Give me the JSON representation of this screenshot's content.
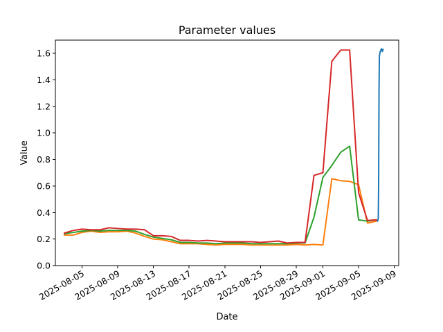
{
  "chart_data": {
    "type": "line",
    "title": "Parameter values",
    "xlabel": "Date",
    "ylabel": "Value",
    "x_type": "date",
    "xlim": [
      "2025-08-02",
      "2025-09-09T12:00"
    ],
    "ylim": [
      0,
      1.7
    ],
    "xticks": [
      "2025-08-05",
      "2025-08-09",
      "2025-08-13",
      "2025-08-17",
      "2025-08-21",
      "2025-08-25",
      "2025-08-29",
      "2025-09-01",
      "2025-09-05",
      "2025-09-09"
    ],
    "yticks": [
      0.0,
      0.2,
      0.4,
      0.6,
      0.8,
      1.0,
      1.2,
      1.4,
      1.6
    ],
    "ytick_labels": [
      "0.0",
      "0.2",
      "0.4",
      "0.6",
      "0.8",
      "1.0",
      "1.2",
      "1.4",
      "1.6"
    ],
    "grid": false,
    "legend": "none",
    "series": [
      {
        "color": "#1f77b4",
        "points": [
          [
            "2025-09-07T00:00",
            0.345
          ],
          [
            "2025-09-07T03:00",
            0.335
          ],
          [
            "2025-09-07T05:00",
            0.35
          ],
          [
            "2025-09-07T06:00",
            0.6
          ],
          [
            "2025-09-07T07:00",
            1.3
          ],
          [
            "2025-09-07T08:00",
            1.58
          ],
          [
            "2025-09-07T10:00",
            1.61
          ],
          [
            "2025-09-07T12:00",
            1.625
          ],
          [
            "2025-09-07T14:00",
            1.635
          ],
          [
            "2025-09-07T16:00",
            1.615
          ],
          [
            "2025-09-07T18:00",
            1.63
          ]
        ]
      },
      {
        "color": "#ff7f0e",
        "points": [
          [
            "2025-08-03",
            0.23
          ],
          [
            "2025-08-04",
            0.23
          ],
          [
            "2025-08-05",
            0.25
          ],
          [
            "2025-08-06",
            0.26
          ],
          [
            "2025-08-07",
            0.25
          ],
          [
            "2025-08-08",
            0.255
          ],
          [
            "2025-08-09",
            0.255
          ],
          [
            "2025-08-10",
            0.26
          ],
          [
            "2025-08-11",
            0.245
          ],
          [
            "2025-08-12",
            0.22
          ],
          [
            "2025-08-13",
            0.2
          ],
          [
            "2025-08-14",
            0.195
          ],
          [
            "2025-08-15",
            0.18
          ],
          [
            "2025-08-16",
            0.165
          ],
          [
            "2025-08-17",
            0.165
          ],
          [
            "2025-08-18",
            0.165
          ],
          [
            "2025-08-19",
            0.16
          ],
          [
            "2025-08-20",
            0.155
          ],
          [
            "2025-08-21",
            0.16
          ],
          [
            "2025-08-22",
            0.16
          ],
          [
            "2025-08-23",
            0.16
          ],
          [
            "2025-08-24",
            0.155
          ],
          [
            "2025-08-25",
            0.155
          ],
          [
            "2025-08-26",
            0.155
          ],
          [
            "2025-08-27",
            0.155
          ],
          [
            "2025-08-28",
            0.155
          ],
          [
            "2025-08-29",
            0.16
          ],
          [
            "2025-08-30",
            0.155
          ],
          [
            "2025-08-31",
            0.16
          ],
          [
            "2025-09-01",
            0.155
          ],
          [
            "2025-09-02",
            0.655
          ],
          [
            "2025-09-03",
            0.64
          ],
          [
            "2025-09-04",
            0.635
          ],
          [
            "2025-09-05",
            0.61
          ],
          [
            "2025-09-06",
            0.32
          ],
          [
            "2025-09-07",
            0.335
          ]
        ]
      },
      {
        "color": "#2ca02c",
        "points": [
          [
            "2025-08-03",
            0.24
          ],
          [
            "2025-08-04",
            0.25
          ],
          [
            "2025-08-05",
            0.26
          ],
          [
            "2025-08-06",
            0.265
          ],
          [
            "2025-08-07",
            0.26
          ],
          [
            "2025-08-08",
            0.265
          ],
          [
            "2025-08-09",
            0.265
          ],
          [
            "2025-08-10",
            0.265
          ],
          [
            "2025-08-11",
            0.26
          ],
          [
            "2025-08-12",
            0.235
          ],
          [
            "2025-08-13",
            0.215
          ],
          [
            "2025-08-14",
            0.205
          ],
          [
            "2025-08-15",
            0.195
          ],
          [
            "2025-08-16",
            0.175
          ],
          [
            "2025-08-17",
            0.175
          ],
          [
            "2025-08-18",
            0.17
          ],
          [
            "2025-08-19",
            0.17
          ],
          [
            "2025-08-20",
            0.165
          ],
          [
            "2025-08-21",
            0.17
          ],
          [
            "2025-08-22",
            0.17
          ],
          [
            "2025-08-23",
            0.17
          ],
          [
            "2025-08-24",
            0.165
          ],
          [
            "2025-08-25",
            0.165
          ],
          [
            "2025-08-26",
            0.165
          ],
          [
            "2025-08-27",
            0.165
          ],
          [
            "2025-08-28",
            0.165
          ],
          [
            "2025-08-29",
            0.17
          ],
          [
            "2025-08-30",
            0.17
          ],
          [
            "2025-08-31",
            0.365
          ],
          [
            "2025-09-01",
            0.665
          ],
          [
            "2025-09-02",
            0.755
          ],
          [
            "2025-09-03",
            0.855
          ],
          [
            "2025-09-04",
            0.9
          ],
          [
            "2025-09-05",
            0.345
          ],
          [
            "2025-09-06",
            0.335
          ],
          [
            "2025-09-07",
            0.345
          ]
        ]
      },
      {
        "color": "#d62728",
        "points": [
          [
            "2025-08-03",
            0.245
          ],
          [
            "2025-08-04",
            0.265
          ],
          [
            "2025-08-05",
            0.275
          ],
          [
            "2025-08-06",
            0.27
          ],
          [
            "2025-08-07",
            0.27
          ],
          [
            "2025-08-08",
            0.285
          ],
          [
            "2025-08-09",
            0.28
          ],
          [
            "2025-08-10",
            0.275
          ],
          [
            "2025-08-11",
            0.275
          ],
          [
            "2025-08-12",
            0.27
          ],
          [
            "2025-08-13",
            0.225
          ],
          [
            "2025-08-14",
            0.225
          ],
          [
            "2025-08-15",
            0.22
          ],
          [
            "2025-08-16",
            0.19
          ],
          [
            "2025-08-17",
            0.19
          ],
          [
            "2025-08-18",
            0.185
          ],
          [
            "2025-08-19",
            0.19
          ],
          [
            "2025-08-20",
            0.185
          ],
          [
            "2025-08-21",
            0.18
          ],
          [
            "2025-08-22",
            0.18
          ],
          [
            "2025-08-23",
            0.18
          ],
          [
            "2025-08-24",
            0.18
          ],
          [
            "2025-08-25",
            0.175
          ],
          [
            "2025-08-26",
            0.18
          ],
          [
            "2025-08-27",
            0.185
          ],
          [
            "2025-08-28",
            0.17
          ],
          [
            "2025-08-29",
            0.175
          ],
          [
            "2025-08-30",
            0.175
          ],
          [
            "2025-08-31",
            0.68
          ],
          [
            "2025-09-01",
            0.7
          ],
          [
            "2025-09-02",
            1.54
          ],
          [
            "2025-09-03",
            1.625
          ],
          [
            "2025-09-04",
            1.625
          ],
          [
            "2025-09-05",
            0.55
          ],
          [
            "2025-09-06",
            0.34
          ],
          [
            "2025-09-07",
            0.345
          ]
        ]
      }
    ]
  }
}
